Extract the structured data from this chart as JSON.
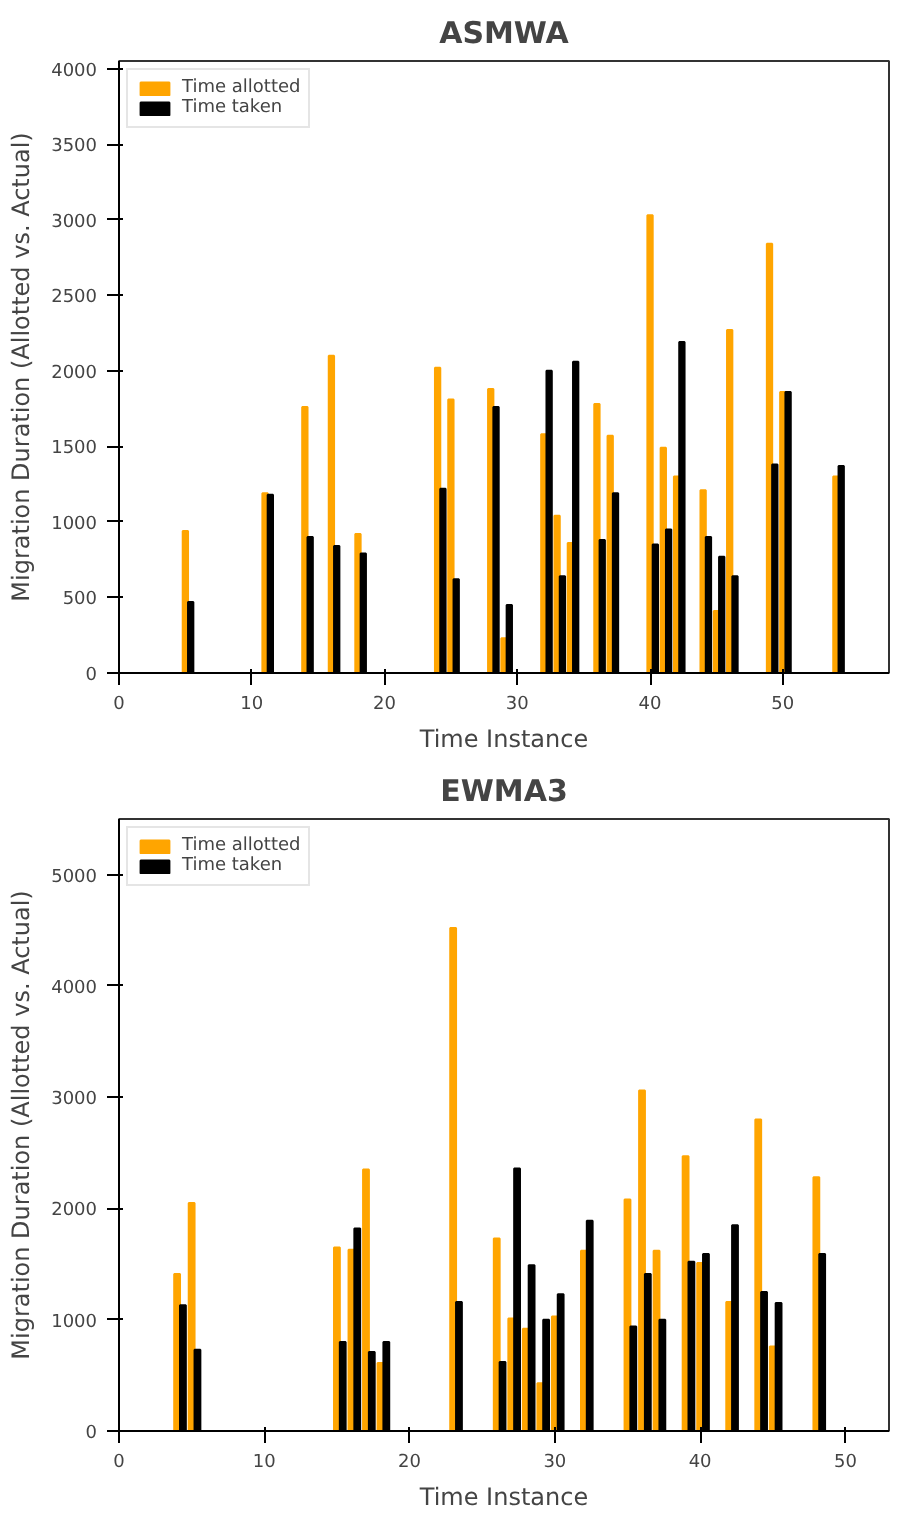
{
  "chart_data": [
    {
      "type": "bar",
      "title": "ASMWA",
      "xlabel": "Time Instance",
      "ylabel": "Migration Duration (Allotted vs. Actual)",
      "x": [
        5,
        11,
        14,
        16,
        18,
        24,
        25,
        28,
        29,
        32,
        33,
        34,
        36,
        37,
        40,
        41,
        42,
        44,
        45,
        46,
        49,
        50,
        54
      ],
      "series": [
        {
          "name": "Time allotted",
          "color": "#ffa500",
          "values": [
            940,
            1190,
            1760,
            2100,
            920,
            2020,
            1810,
            1880,
            230,
            1580,
            1040,
            860,
            1780,
            1570,
            3030,
            1490,
            1300,
            1210,
            410,
            2270,
            2840,
            1860,
            1300
          ]
        },
        {
          "name": "Time taken",
          "color": "#000000",
          "values": [
            470,
            1180,
            900,
            840,
            790,
            1220,
            620,
            1760,
            450,
            2000,
            640,
            2060,
            880,
            1190,
            850,
            950,
            2190,
            900,
            770,
            640,
            1380,
            1860,
            1370
          ]
        }
      ],
      "xlim": [
        0,
        58
      ],
      "ylim": [
        0,
        4050
      ],
      "xticks": [
        0,
        10,
        20,
        30,
        40,
        50
      ],
      "yticks": [
        0,
        500,
        1000,
        1500,
        2000,
        2500,
        3000,
        3500,
        4000
      ],
      "legend": "top left"
    },
    {
      "type": "bar",
      "title": "EWMA3",
      "xlabel": "Time Instance",
      "ylabel": "Migration Duration (Allotted vs. Actual)",
      "x": [
        4,
        5,
        15,
        16,
        17,
        18,
        23,
        26,
        27,
        28,
        29,
        30,
        32,
        35,
        36,
        37,
        39,
        40,
        42,
        44,
        45,
        48
      ],
      "series": [
        {
          "name": "Time allotted",
          "color": "#ffa500",
          "values": [
            1410,
            2050,
            1650,
            1630,
            2350,
            610,
            4520,
            1730,
            1010,
            920,
            430,
            1030,
            1620,
            2080,
            3060,
            1620,
            2470,
            1510,
            1160,
            2800,
            760,
            2280
          ]
        },
        {
          "name": "Time taken",
          "color": "#000000",
          "values": [
            1130,
            730,
            800,
            1820,
            710,
            800,
            1160,
            620,
            2360,
            1490,
            1000,
            1230,
            1890,
            940,
            1410,
            1000,
            1520,
            1590,
            1850,
            1250,
            1150,
            1590
          ]
        }
      ],
      "xlim": [
        0,
        53
      ],
      "ylim": [
        0,
        5500
      ],
      "xticks": [
        0,
        10,
        20,
        30,
        40,
        50
      ],
      "yticks": [
        0,
        1000,
        2000,
        3000,
        4000,
        5000
      ],
      "legend": "top left"
    }
  ]
}
